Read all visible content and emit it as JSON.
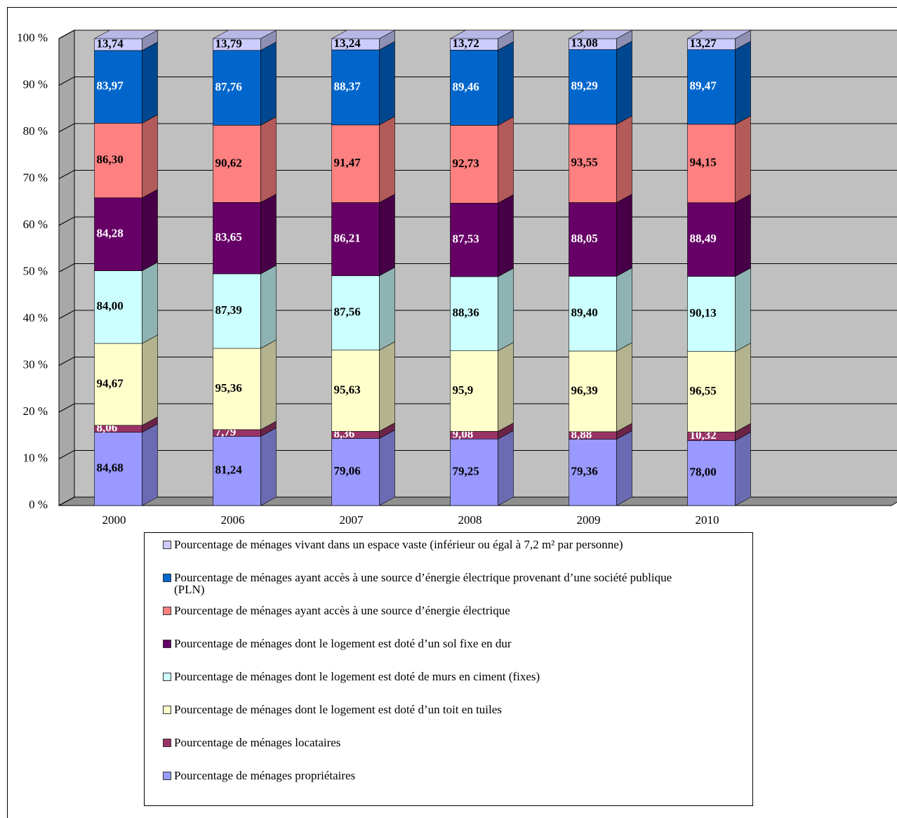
{
  "chart_data": {
    "type": "bar",
    "stacked": "percent",
    "categories": [
      "2000",
      "2006",
      "2007",
      "2008",
      "2009",
      "2010"
    ],
    "ylim": [
      0,
      100
    ],
    "yticks": [
      {
        "value": 0,
        "label": "0 %"
      },
      {
        "value": 10,
        "label": "10 %"
      },
      {
        "value": 20,
        "label": "20 %"
      },
      {
        "value": 30,
        "label": "30 %"
      },
      {
        "value": 40,
        "label": "40 %"
      },
      {
        "value": 50,
        "label": "50 %"
      },
      {
        "value": 60,
        "label": "60 %"
      },
      {
        "value": 70,
        "label": "70 %"
      },
      {
        "value": 80,
        "label": "80 %"
      },
      {
        "value": 90,
        "label": "90 %"
      },
      {
        "value": 100,
        "label": "100 %"
      }
    ],
    "grid": true,
    "series": [
      {
        "name": "Pourcentage de ménages propriétaires",
        "color": "#9999ff",
        "values": [
          84.68,
          81.24,
          79.06,
          79.25,
          79.36,
          78.0
        ],
        "value_labels": [
          "84,68",
          "81,24",
          "79,06",
          "79,25",
          "79,36",
          "78,00"
        ]
      },
      {
        "name": "Pourcentage de ménages locataires",
        "color": "#993366",
        "values": [
          8.06,
          7.79,
          8.36,
          9.08,
          8.88,
          10.32
        ],
        "value_labels": [
          "8,06",
          "7,79",
          "8,36",
          "9,08",
          "8,88",
          "10,32"
        ]
      },
      {
        "name": "Pourcentage de ménages dont le logement est doté d’un toit en tuiles",
        "color": "#ffffcc",
        "values": [
          94.67,
          95.36,
          95.63,
          95.9,
          96.39,
          96.55
        ],
        "value_labels": [
          "94,67",
          "95,36",
          "95,63",
          "95,9",
          "96,39",
          "96,55"
        ]
      },
      {
        "name": "Pourcentage de ménages dont le logement est doté de murs en ciment (fixes)",
        "color": "#ccffff",
        "values": [
          84.0,
          87.39,
          87.56,
          88.36,
          89.4,
          90.13
        ],
        "value_labels": [
          "84,00",
          "87,39",
          "87,56",
          "88,36",
          "89,40",
          "90,13"
        ]
      },
      {
        "name": "Pourcentage de ménages dont le logement est doté d’un sol fixe en dur",
        "color": "#660066",
        "values": [
          84.28,
          83.65,
          86.21,
          87.53,
          88.05,
          88.49
        ],
        "value_labels": [
          "84,28",
          "83,65",
          "86,21",
          "87,53",
          "88,05",
          "88,49"
        ]
      },
      {
        "name": "Pourcentage de ménages ayant accès à une source d’énergie électrique",
        "color": "#ff8080",
        "values": [
          86.3,
          90.62,
          91.47,
          92.73,
          93.55,
          94.15
        ],
        "value_labels": [
          "86,30",
          "90,62",
          "91,47",
          "92,73",
          "93,55",
          "94,15"
        ]
      },
      {
        "name": "Pourcentage de ménages ayant accès à une source d’énergie électrique provenant d’une société publique (PLN)",
        "color": "#0066cc",
        "values": [
          83.97,
          87.76,
          88.37,
          89.46,
          89.29,
          89.47
        ],
        "value_labels": [
          "83,97",
          "87,76",
          "88,37",
          "89,46",
          "89,29",
          "89,47"
        ]
      },
      {
        "name": "Pourcentage de ménages vivant dans un espace vaste (inférieur ou égal à 7,2 m² par personne)",
        "color": "#ccccff",
        "values": [
          13.74,
          13.79,
          13.24,
          13.72,
          13.08,
          13.27
        ],
        "value_labels": [
          "13,74",
          "13,79",
          "13,24",
          "13,72",
          "13,08",
          "13,27"
        ]
      }
    ]
  }
}
